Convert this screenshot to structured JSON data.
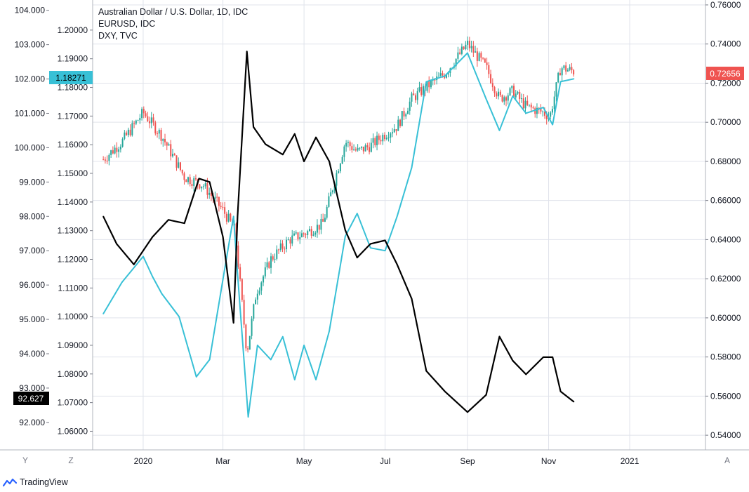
{
  "legend": {
    "title": "Australian Dollar / U.S. Dollar, 1D, IDC",
    "line2": "EURUSD, IDC",
    "line3": "DXY, TVC"
  },
  "badges": {
    "left_top": "1.18271",
    "left_bottom": "92.627",
    "right": "0.72656"
  },
  "controls": {
    "y_button": "Y",
    "z_button": "Z",
    "a_button": "A"
  },
  "brand": "TradingView",
  "colors": {
    "audusd_up": "#26a69a",
    "audusd_down": "#ef5350",
    "eurusd": "#38c0d6",
    "dxy": "#000000",
    "grid": "#e0e3eb"
  },
  "chart_data": {
    "type": "line",
    "x_tick_labels": [
      "2020",
      "Mar",
      "May",
      "Jul",
      "Sep",
      "Nov",
      "2021"
    ],
    "axes": {
      "dxy": {
        "side": "left-outer",
        "range": [
          91.2,
          104.3
        ],
        "ticks": [
          "104.000",
          "103.000",
          "102.000",
          "101.000",
          "100.000",
          "99.000",
          "98.000",
          "97.000",
          "96.000",
          "95.000",
          "94.000",
          "93.000",
          "92.000"
        ]
      },
      "eurusd": {
        "side": "left-inner",
        "range": [
          1.0535,
          1.2105
        ],
        "ticks": [
          "1.20000",
          "1.19000",
          "1.18000",
          "1.17000",
          "1.16000",
          "1.15000",
          "1.14000",
          "1.13000",
          "1.12000",
          "1.11000",
          "1.10000",
          "1.09000",
          "1.08000",
          "1.07000",
          "1.06000"
        ]
      },
      "audusd": {
        "side": "right",
        "range": [
          0.5325,
          0.7625
        ],
        "ticks": [
          "0.76000",
          "0.74000",
          "0.72000",
          "0.70000",
          "0.68000",
          "0.66000",
          "0.64000",
          "0.62000",
          "0.60000",
          "0.58000",
          "0.56000",
          "0.54000"
        ]
      }
    },
    "series": [
      {
        "name": "Australian Dollar / U.S. Dollar, 1D, IDC",
        "render": "candles",
        "axis": "audusd",
        "x": [
          "2019-12-02",
          "2019-12-16",
          "2020-01-01",
          "2020-01-15",
          "2020-02-01",
          "2020-02-15",
          "2020-03-01",
          "2020-03-10",
          "2020-03-19",
          "2020-03-26",
          "2020-04-06",
          "2020-04-20",
          "2020-05-01",
          "2020-05-15",
          "2020-06-01",
          "2020-06-10",
          "2020-06-20",
          "2020-07-01",
          "2020-07-10",
          "2020-07-21",
          "2020-08-01",
          "2020-08-15",
          "2020-09-01",
          "2020-09-15",
          "2020-09-25",
          "2020-10-05",
          "2020-10-15",
          "2020-10-28",
          "2020-11-02",
          "2020-11-10",
          "2020-11-20"
        ],
        "y": [
          0.681,
          0.69,
          0.705,
          0.693,
          0.672,
          0.668,
          0.655,
          0.645,
          0.582,
          0.613,
          0.63,
          0.64,
          0.643,
          0.648,
          0.69,
          0.685,
          0.688,
          0.694,
          0.698,
          0.712,
          0.718,
          0.725,
          0.74,
          0.728,
          0.712,
          0.716,
          0.708,
          0.705,
          0.703,
          0.728,
          0.726
        ]
      },
      {
        "name": "EURUSD, IDC",
        "render": "line",
        "axis": "eurusd",
        "x": [
          "2019-12-02",
          "2019-12-16",
          "2020-01-01",
          "2020-01-08",
          "2020-01-15",
          "2020-01-28",
          "2020-02-10",
          "2020-02-20",
          "2020-03-01",
          "2020-03-09",
          "2020-03-12",
          "2020-03-20",
          "2020-03-27",
          "2020-04-06",
          "2020-04-15",
          "2020-04-24",
          "2020-05-01",
          "2020-05-10",
          "2020-05-20",
          "2020-06-01",
          "2020-06-10",
          "2020-06-20",
          "2020-07-01",
          "2020-07-10",
          "2020-07-21",
          "2020-08-01",
          "2020-08-15",
          "2020-09-01",
          "2020-09-15",
          "2020-09-25",
          "2020-10-05",
          "2020-10-15",
          "2020-10-28",
          "2020-11-04",
          "2020-11-10",
          "2020-11-20"
        ],
        "y": [
          1.101,
          1.112,
          1.121,
          1.114,
          1.108,
          1.1,
          1.079,
          1.085,
          1.113,
          1.135,
          1.115,
          1.065,
          1.09,
          1.085,
          1.093,
          1.078,
          1.09,
          1.078,
          1.095,
          1.128,
          1.136,
          1.124,
          1.123,
          1.135,
          1.152,
          1.182,
          1.184,
          1.192,
          1.176,
          1.165,
          1.177,
          1.171,
          1.173,
          1.167,
          1.182,
          1.183
        ]
      },
      {
        "name": "DXY, TVC",
        "render": "line",
        "axis": "dxy",
        "x": [
          "2019-12-02",
          "2019-12-12",
          "2019-12-25",
          "2020-01-08",
          "2020-01-20",
          "2020-02-01",
          "2020-02-12",
          "2020-02-20",
          "2020-03-01",
          "2020-03-09",
          "2020-03-12",
          "2020-03-19",
          "2020-03-24",
          "2020-04-02",
          "2020-04-15",
          "2020-04-24",
          "2020-05-01",
          "2020-05-10",
          "2020-05-20",
          "2020-06-01",
          "2020-06-10",
          "2020-06-20",
          "2020-07-01",
          "2020-07-10",
          "2020-07-21",
          "2020-08-01",
          "2020-08-15",
          "2020-09-01",
          "2020-09-15",
          "2020-09-25",
          "2020-10-05",
          "2020-10-15",
          "2020-10-28",
          "2020-11-04",
          "2020-11-10",
          "2020-11-20"
        ],
        "y": [
          98.0,
          97.2,
          96.6,
          97.4,
          97.9,
          97.8,
          99.1,
          99.0,
          97.4,
          94.9,
          98.0,
          102.8,
          100.6,
          100.1,
          99.8,
          100.4,
          99.6,
          100.3,
          99.6,
          97.6,
          96.8,
          97.2,
          97.3,
          96.6,
          95.6,
          93.5,
          92.9,
          92.3,
          92.8,
          94.5,
          93.8,
          93.4,
          93.9,
          93.9,
          92.9,
          92.6
        ]
      }
    ]
  }
}
